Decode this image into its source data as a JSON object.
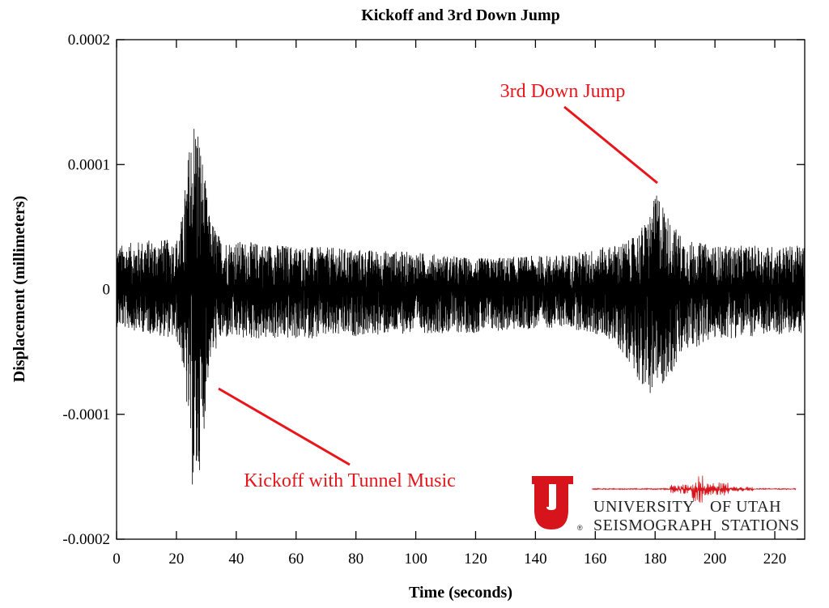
{
  "chart_data": {
    "type": "line",
    "title": "Kickoff and 3rd Down Jump",
    "xlabel": "Time (seconds)",
    "ylabel": "Displacement (millimeters)",
    "xlim": [
      0,
      230
    ],
    "ylim": [
      -0.0002,
      0.0002
    ],
    "x_ticks": [
      0,
      20,
      40,
      60,
      80,
      100,
      120,
      140,
      160,
      180,
      200,
      220
    ],
    "x_tick_labels": [
      "0",
      "20",
      "40",
      "60",
      "80",
      "100",
      "120",
      "140",
      "160",
      "180",
      "200",
      "220"
    ],
    "y_ticks": [
      0.0002,
      0.0001,
      0,
      -0.0001,
      -0.0002
    ],
    "y_tick_labels": [
      "0.0002",
      "0.0001",
      "0",
      "-0.0001",
      "-0.0002"
    ],
    "grid": false,
    "line_color": "#000000",
    "series": [
      {
        "envelope": [
          {
            "x": 0,
            "max": 3.5e-05,
            "min": -3e-05
          },
          {
            "x": 10,
            "max": 4e-05,
            "min": -3.5e-05
          },
          {
            "x": 20,
            "max": 4e-05,
            "min": -4e-05
          },
          {
            "x": 22,
            "max": 6e-05,
            "min": -6e-05
          },
          {
            "x": 24,
            "max": 0.00011,
            "min": -0.00011
          },
          {
            "x": 25.5,
            "max": 0.00014,
            "min": -0.000165
          },
          {
            "x": 27,
            "max": 0.00014,
            "min": -0.00016
          },
          {
            "x": 29,
            "max": 0.0001,
            "min": -0.00012
          },
          {
            "x": 31,
            "max": 6e-05,
            "min": -6e-05
          },
          {
            "x": 35,
            "max": 4e-05,
            "min": -4e-05
          },
          {
            "x": 60,
            "max": 3.5e-05,
            "min": -4e-05
          },
          {
            "x": 100,
            "max": 3e-05,
            "min": -3.5e-05
          },
          {
            "x": 120,
            "max": 2.5e-05,
            "min": -3.5e-05
          },
          {
            "x": 150,
            "max": 2.8e-05,
            "min": -3e-05
          },
          {
            "x": 165,
            "max": 3.5e-05,
            "min": -4e-05
          },
          {
            "x": 172,
            "max": 4e-05,
            "min": -6e-05
          },
          {
            "x": 177,
            "max": 5.5e-05,
            "min": -8.5e-05
          },
          {
            "x": 181,
            "max": 8e-05,
            "min": -8e-05
          },
          {
            "x": 185,
            "max": 5.5e-05,
            "min": -7e-05
          },
          {
            "x": 190,
            "max": 4e-05,
            "min": -5e-05
          },
          {
            "x": 200,
            "max": 3.5e-05,
            "min": -4e-05
          },
          {
            "x": 230,
            "max": 3.5e-05,
            "min": -3.5e-05
          }
        ]
      }
    ],
    "annotations": [
      {
        "text": "3rd Down Jump",
        "color": "#e8151b",
        "points_to_x": 181,
        "points_to_y": 8.5e-05
      },
      {
        "text": "Kickoff with Tunnel Music",
        "color": "#e8151b",
        "points_to_x": 34,
        "points_to_y": -8e-05
      }
    ]
  },
  "logo": {
    "letter": "U",
    "registered_mark": "®",
    "line1_left": "UNIVERSITY",
    "line1_right": "OF UTAH",
    "line2": "SEISMOGRAPH  STATIONS",
    "color": "#d7141b"
  }
}
